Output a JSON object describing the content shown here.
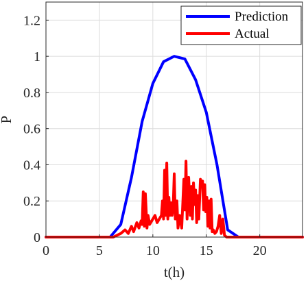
{
  "chart_data": {
    "type": "line",
    "title": "",
    "xlabel": "t(h)",
    "ylabel": "P",
    "xlim": [
      0,
      24
    ],
    "ylim": [
      0,
      1.3
    ],
    "grid": true,
    "legend_position": "top-right",
    "x_ticks": [
      0,
      5,
      10,
      15,
      20
    ],
    "y_ticks": [
      0,
      0.2,
      0.4,
      0.6,
      0.8,
      1,
      1.2
    ],
    "x_tick_labels": [
      "0",
      "5",
      "10",
      "15",
      "20"
    ],
    "y_tick_labels": [
      "0",
      "0.2",
      "0.4",
      "0.6",
      "0.8",
      "1",
      "1.2"
    ],
    "series": [
      {
        "name": "Prediction",
        "color": "#0000ff",
        "x": [
          0,
          6,
          7,
          8,
          9,
          10,
          11,
          12,
          13,
          14,
          15,
          16,
          17,
          18,
          24
        ],
        "y": [
          0,
          0,
          0.07,
          0.33,
          0.64,
          0.85,
          0.97,
          1.0,
          0.985,
          0.87,
          0.69,
          0.4,
          0.04,
          0,
          0
        ]
      },
      {
        "name": "Actual",
        "color": "#ff0000",
        "x": [
          0,
          6.3,
          7.0,
          7.4,
          7.7,
          8.0,
          8.2,
          8.5,
          8.7,
          8.9,
          9.0,
          9.1,
          9.2,
          9.3,
          9.45,
          9.55,
          9.7,
          9.9,
          10.0,
          10.2,
          10.4,
          10.6,
          10.8,
          10.9,
          11.0,
          11.1,
          11.2,
          11.3,
          11.4,
          11.5,
          11.6,
          11.7,
          11.8,
          11.9,
          12.0,
          12.1,
          12.25,
          12.35,
          12.5,
          12.7,
          12.9,
          13.0,
          13.1,
          13.2,
          13.35,
          13.5,
          13.6,
          13.7,
          13.8,
          13.9,
          14.0,
          14.1,
          14.2,
          14.3,
          14.45,
          14.55,
          14.65,
          14.75,
          14.85,
          14.95,
          15.05,
          15.15,
          15.25,
          15.35,
          15.45,
          15.55,
          15.65,
          15.8,
          15.95,
          16.1,
          16.25,
          16.4,
          16.55,
          16.7,
          16.9,
          24
        ],
        "y": [
          0,
          0,
          0.02,
          0.04,
          0.02,
          0.06,
          0.03,
          0.08,
          0.05,
          0.09,
          0.07,
          0.25,
          0.06,
          0.24,
          0.05,
          0.12,
          0.07,
          0.09,
          0.1,
          0.12,
          0.08,
          0.1,
          0.12,
          0.2,
          0.1,
          0.37,
          0.12,
          0.41,
          0.1,
          0.22,
          0.12,
          0.19,
          0.12,
          0.16,
          0.35,
          0.1,
          0.2,
          0.05,
          0.12,
          0.05,
          0.32,
          0.15,
          0.42,
          0.1,
          0.33,
          0.12,
          0.28,
          0.1,
          0.3,
          0.18,
          0.26,
          0.08,
          0.23,
          0.1,
          0.32,
          0.28,
          0.31,
          0.15,
          0.29,
          0.14,
          0.22,
          0.06,
          0.2,
          0.05,
          0.21,
          0.03,
          0.04,
          0.02,
          0.03,
          0.06,
          0.12,
          0.02,
          0.1,
          0.01,
          0,
          0
        ]
      }
    ]
  }
}
